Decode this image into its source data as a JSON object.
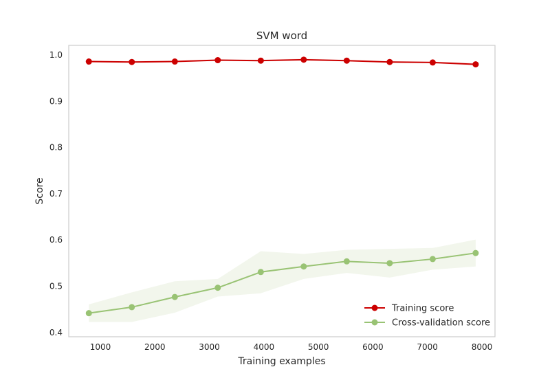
{
  "chart_data": {
    "type": "line",
    "title": "SVM word",
    "xlabel": "Training examples",
    "ylabel": "Score",
    "xlim": [
      420,
      8240
    ],
    "ylim": [
      0.39,
      1.02
    ],
    "xticks": [
      1000,
      2000,
      3000,
      4000,
      5000,
      6000,
      7000,
      8000
    ],
    "yticks": [
      0.4,
      0.5,
      0.6,
      0.7,
      0.8,
      0.9,
      1.0
    ],
    "xtick_labels": [
      "1000",
      "2000",
      "3000",
      "4000",
      "5000",
      "6000",
      "7000",
      "8000"
    ],
    "ytick_labels": [
      "0.4",
      "0.5",
      "0.6",
      "0.7",
      "0.8",
      "0.9",
      "1.0"
    ],
    "grid": false,
    "legend_position": "bottom-right",
    "x": [
      789,
      1577,
      2366,
      3154,
      3943,
      4731,
      5520,
      6308,
      7097,
      7885
    ],
    "series": [
      {
        "name": "Training score",
        "color": "#cc0000",
        "values": [
          0.985,
          0.984,
          0.985,
          0.988,
          0.987,
          0.989,
          0.987,
          0.984,
          0.983,
          0.979
        ],
        "lower": [
          0.983,
          0.982,
          0.983,
          0.986,
          0.985,
          0.987,
          0.985,
          0.982,
          0.981,
          0.976
        ],
        "upper": [
          0.987,
          0.986,
          0.987,
          0.99,
          0.989,
          0.991,
          0.989,
          0.986,
          0.985,
          0.982
        ]
      },
      {
        "name": "Cross-validation score",
        "color": "#99c374",
        "band_color": "#f2f6ec",
        "values": [
          0.441,
          0.454,
          0.476,
          0.496,
          0.53,
          0.542,
          0.553,
          0.549,
          0.558,
          0.571
        ],
        "lower": [
          0.422,
          0.422,
          0.442,
          0.477,
          0.484,
          0.515,
          0.528,
          0.518,
          0.535,
          0.542
        ],
        "upper": [
          0.46,
          0.486,
          0.51,
          0.515,
          0.575,
          0.569,
          0.578,
          0.58,
          0.582,
          0.6
        ]
      }
    ]
  }
}
